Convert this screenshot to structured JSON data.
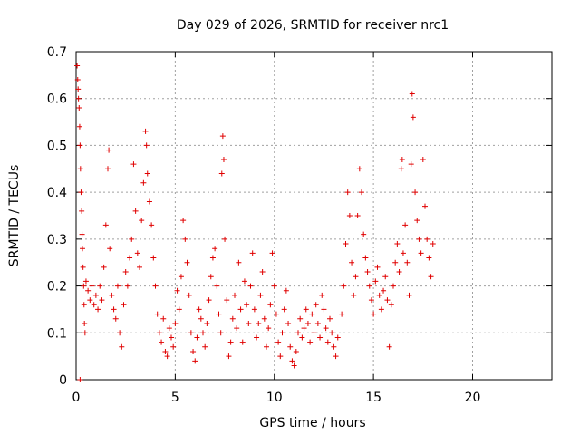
{
  "chart_data": {
    "type": "scatter",
    "title": "Day 029 of 2026, SRMTID for receiver nrc1",
    "xlabel": "GPS time / hours",
    "ylabel": "SRMTID / TECUs",
    "xlim": [
      0,
      24
    ],
    "ylim": [
      0,
      0.7
    ],
    "xticks": [
      "0",
      "5",
      "10",
      "15",
      "20"
    ],
    "xtick_values": [
      0,
      5,
      10,
      15,
      20
    ],
    "yticks": [
      "0",
      "0.1",
      "0.2",
      "0.3",
      "0.4",
      "0.5",
      "0.6",
      "0.7"
    ],
    "ytick_values": [
      0,
      0.1,
      0.2,
      0.3,
      0.4,
      0.5,
      0.6,
      0.7
    ],
    "grid": true,
    "marker": "+",
    "color": "#e00000",
    "series": [
      {
        "name": "SRMTID",
        "points": [
          [
            0.05,
            0.67
          ],
          [
            0.08,
            0.64
          ],
          [
            0.1,
            0.62
          ],
          [
            0.12,
            0.6
          ],
          [
            0.15,
            0.58
          ],
          [
            0.18,
            0.54
          ],
          [
            0.2,
            0.5
          ],
          [
            0.22,
            0.45
          ],
          [
            0.25,
            0.4
          ],
          [
            0.28,
            0.36
          ],
          [
            0.3,
            0.31
          ],
          [
            0.32,
            0.28
          ],
          [
            0.35,
            0.24
          ],
          [
            0.38,
            0.2
          ],
          [
            0.4,
            0.16
          ],
          [
            0.42,
            0.12
          ],
          [
            0.45,
            0.1
          ],
          [
            0.2,
            0.0
          ],
          [
            0.5,
            0.21
          ],
          [
            0.6,
            0.19
          ],
          [
            0.7,
            0.17
          ],
          [
            0.8,
            0.2
          ],
          [
            0.9,
            0.16
          ],
          [
            1.0,
            0.18
          ],
          [
            1.1,
            0.15
          ],
          [
            1.2,
            0.2
          ],
          [
            1.3,
            0.17
          ],
          [
            1.4,
            0.24
          ],
          [
            1.5,
            0.33
          ],
          [
            1.6,
            0.45
          ],
          [
            1.65,
            0.49
          ],
          [
            1.7,
            0.28
          ],
          [
            1.8,
            0.18
          ],
          [
            1.9,
            0.15
          ],
          [
            2.0,
            0.13
          ],
          [
            2.1,
            0.2
          ],
          [
            2.2,
            0.1
          ],
          [
            2.3,
            0.07
          ],
          [
            2.4,
            0.16
          ],
          [
            2.5,
            0.23
          ],
          [
            2.6,
            0.2
          ],
          [
            2.7,
            0.26
          ],
          [
            2.8,
            0.3
          ],
          [
            2.9,
            0.46
          ],
          [
            3.0,
            0.36
          ],
          [
            3.1,
            0.27
          ],
          [
            3.2,
            0.24
          ],
          [
            3.3,
            0.34
          ],
          [
            3.4,
            0.42
          ],
          [
            3.5,
            0.53
          ],
          [
            3.55,
            0.5
          ],
          [
            3.6,
            0.44
          ],
          [
            3.7,
            0.38
          ],
          [
            3.8,
            0.33
          ],
          [
            3.9,
            0.26
          ],
          [
            4.0,
            0.2
          ],
          [
            4.1,
            0.14
          ],
          [
            4.2,
            0.1
          ],
          [
            4.3,
            0.08
          ],
          [
            4.4,
            0.13
          ],
          [
            4.5,
            0.06
          ],
          [
            4.6,
            0.05
          ],
          [
            4.7,
            0.11
          ],
          [
            4.8,
            0.09
          ],
          [
            4.9,
            0.07
          ],
          [
            5.0,
            0.12
          ],
          [
            5.1,
            0.19
          ],
          [
            5.2,
            0.15
          ],
          [
            5.3,
            0.22
          ],
          [
            5.4,
            0.34
          ],
          [
            5.5,
            0.3
          ],
          [
            5.6,
            0.25
          ],
          [
            5.7,
            0.18
          ],
          [
            5.8,
            0.1
          ],
          [
            5.9,
            0.06
          ],
          [
            6.0,
            0.04
          ],
          [
            6.1,
            0.09
          ],
          [
            6.2,
            0.15
          ],
          [
            6.3,
            0.13
          ],
          [
            6.4,
            0.1
          ],
          [
            6.5,
            0.07
          ],
          [
            6.6,
            0.12
          ],
          [
            6.7,
            0.17
          ],
          [
            6.8,
            0.22
          ],
          [
            6.9,
            0.26
          ],
          [
            7.0,
            0.28
          ],
          [
            7.1,
            0.2
          ],
          [
            7.2,
            0.14
          ],
          [
            7.3,
            0.1
          ],
          [
            7.35,
            0.44
          ],
          [
            7.4,
            0.52
          ],
          [
            7.45,
            0.47
          ],
          [
            7.5,
            0.3
          ],
          [
            7.6,
            0.17
          ],
          [
            7.7,
            0.05
          ],
          [
            7.8,
            0.08
          ],
          [
            7.9,
            0.13
          ],
          [
            8.0,
            0.18
          ],
          [
            8.1,
            0.11
          ],
          [
            8.2,
            0.25
          ],
          [
            8.3,
            0.15
          ],
          [
            8.4,
            0.08
          ],
          [
            8.5,
            0.21
          ],
          [
            8.6,
            0.16
          ],
          [
            8.7,
            0.12
          ],
          [
            8.8,
            0.2
          ],
          [
            8.9,
            0.27
          ],
          [
            9.0,
            0.15
          ],
          [
            9.1,
            0.09
          ],
          [
            9.2,
            0.12
          ],
          [
            9.3,
            0.18
          ],
          [
            9.4,
            0.23
          ],
          [
            9.5,
            0.13
          ],
          [
            9.6,
            0.07
          ],
          [
            9.7,
            0.11
          ],
          [
            9.8,
            0.16
          ],
          [
            9.9,
            0.27
          ],
          [
            10.0,
            0.2
          ],
          [
            10.1,
            0.14
          ],
          [
            10.2,
            0.08
          ],
          [
            10.3,
            0.05
          ],
          [
            10.4,
            0.1
          ],
          [
            10.5,
            0.15
          ],
          [
            10.6,
            0.19
          ],
          [
            10.7,
            0.12
          ],
          [
            10.8,
            0.07
          ],
          [
            10.9,
            0.04
          ],
          [
            11.0,
            0.03
          ],
          [
            11.1,
            0.06
          ],
          [
            11.2,
            0.1
          ],
          [
            11.3,
            0.13
          ],
          [
            11.4,
            0.09
          ],
          [
            11.5,
            0.11
          ],
          [
            11.6,
            0.15
          ],
          [
            11.7,
            0.12
          ],
          [
            11.8,
            0.08
          ],
          [
            11.9,
            0.14
          ],
          [
            12.0,
            0.1
          ],
          [
            12.1,
            0.16
          ],
          [
            12.2,
            0.12
          ],
          [
            12.3,
            0.09
          ],
          [
            12.4,
            0.18
          ],
          [
            12.5,
            0.15
          ],
          [
            12.6,
            0.11
          ],
          [
            12.7,
            0.08
          ],
          [
            12.8,
            0.13
          ],
          [
            12.9,
            0.1
          ],
          [
            13.0,
            0.07
          ],
          [
            13.1,
            0.05
          ],
          [
            13.2,
            0.09
          ],
          [
            13.4,
            0.14
          ],
          [
            13.5,
            0.2
          ],
          [
            13.6,
            0.29
          ],
          [
            13.7,
            0.4
          ],
          [
            13.8,
            0.35
          ],
          [
            13.9,
            0.25
          ],
          [
            14.0,
            0.18
          ],
          [
            14.1,
            0.22
          ],
          [
            14.2,
            0.35
          ],
          [
            14.3,
            0.45
          ],
          [
            14.4,
            0.4
          ],
          [
            14.5,
            0.31
          ],
          [
            14.6,
            0.26
          ],
          [
            14.7,
            0.23
          ],
          [
            14.8,
            0.2
          ],
          [
            14.9,
            0.17
          ],
          [
            15.0,
            0.14
          ],
          [
            15.1,
            0.21
          ],
          [
            15.2,
            0.24
          ],
          [
            15.3,
            0.18
          ],
          [
            15.4,
            0.15
          ],
          [
            15.5,
            0.19
          ],
          [
            15.6,
            0.22
          ],
          [
            15.7,
            0.17
          ],
          [
            15.8,
            0.07
          ],
          [
            15.9,
            0.16
          ],
          [
            16.0,
            0.2
          ],
          [
            16.1,
            0.25
          ],
          [
            16.2,
            0.29
          ],
          [
            16.3,
            0.23
          ],
          [
            16.4,
            0.45
          ],
          [
            16.45,
            0.47
          ],
          [
            16.5,
            0.27
          ],
          [
            16.6,
            0.33
          ],
          [
            16.7,
            0.25
          ],
          [
            16.8,
            0.18
          ],
          [
            16.9,
            0.46
          ],
          [
            16.95,
            0.61
          ],
          [
            17.0,
            0.56
          ],
          [
            17.1,
            0.4
          ],
          [
            17.2,
            0.34
          ],
          [
            17.3,
            0.3
          ],
          [
            17.4,
            0.27
          ],
          [
            17.5,
            0.47
          ],
          [
            17.6,
            0.37
          ],
          [
            17.7,
            0.3
          ],
          [
            17.8,
            0.26
          ],
          [
            17.9,
            0.22
          ],
          [
            18.0,
            0.29
          ]
        ]
      }
    ]
  }
}
